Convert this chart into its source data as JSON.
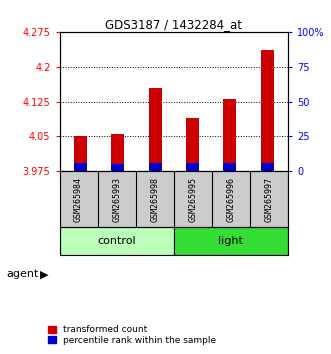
{
  "title": "GDS3187 / 1432284_at",
  "samples": [
    "GSM265984",
    "GSM265993",
    "GSM265998",
    "GSM265995",
    "GSM265996",
    "GSM265997"
  ],
  "red_values": [
    4.05,
    4.055,
    4.155,
    4.09,
    4.13,
    4.235
  ],
  "blue_values": [
    3.992,
    3.991,
    3.993,
    3.992,
    3.993,
    3.993
  ],
  "ymin": 3.975,
  "ymax": 4.275,
  "yticks": [
    3.975,
    4.05,
    4.125,
    4.2,
    4.275
  ],
  "right_yticks": [
    0,
    25,
    50,
    75,
    100
  ],
  "right_yticklabels": [
    "0",
    "25",
    "50",
    "75",
    "100%"
  ],
  "red_color": "#cc0000",
  "blue_color": "#0000cc",
  "bar_width": 0.35,
  "blue_bar_width": 0.35,
  "background_color": "#ffffff",
  "control_color": "#bbffbb",
  "light_color": "#33dd33",
  "agent_label": "agent",
  "legend_labels": [
    "transformed count",
    "percentile rank within the sample"
  ]
}
